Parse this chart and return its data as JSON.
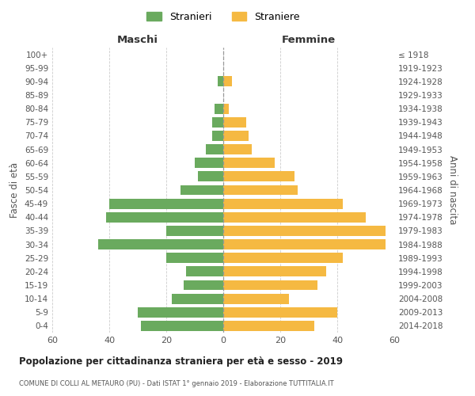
{
  "age_groups": [
    "100+",
    "95-99",
    "90-94",
    "85-89",
    "80-84",
    "75-79",
    "70-74",
    "65-69",
    "60-64",
    "55-59",
    "50-54",
    "45-49",
    "40-44",
    "35-39",
    "30-34",
    "25-29",
    "20-24",
    "15-19",
    "10-14",
    "5-9",
    "0-4"
  ],
  "birth_years": [
    "≤ 1918",
    "1919-1923",
    "1924-1928",
    "1929-1933",
    "1934-1938",
    "1939-1943",
    "1944-1948",
    "1949-1953",
    "1954-1958",
    "1959-1963",
    "1964-1968",
    "1969-1973",
    "1974-1978",
    "1979-1983",
    "1984-1988",
    "1989-1993",
    "1994-1998",
    "1999-2003",
    "2004-2008",
    "2009-2013",
    "2014-2018"
  ],
  "males": [
    0,
    0,
    2,
    0,
    3,
    4,
    4,
    6,
    10,
    9,
    15,
    40,
    41,
    20,
    44,
    20,
    13,
    14,
    18,
    30,
    29
  ],
  "females": [
    0,
    0,
    3,
    0,
    2,
    8,
    9,
    10,
    18,
    25,
    26,
    42,
    50,
    57,
    57,
    42,
    36,
    33,
    23,
    40,
    32
  ],
  "male_color": "#6aaa5e",
  "female_color": "#f5b942",
  "title": "Popolazione per cittadinanza straniera per età e sesso - 2019",
  "subtitle": "COMUNE DI COLLI AL METAURO (PU) - Dati ISTAT 1° gennaio 2019 - Elaborazione TUTTITALIA.IT",
  "header_left": "Maschi",
  "header_right": "Femmine",
  "ylabel_left": "Fasce di età",
  "ylabel_right": "Anni di nascita",
  "legend_stranieri": "Stranieri",
  "legend_straniere": "Straniere",
  "xlim": 60,
  "bg_color": "#ffffff",
  "grid_color": "#cccccc",
  "bar_height": 0.75
}
